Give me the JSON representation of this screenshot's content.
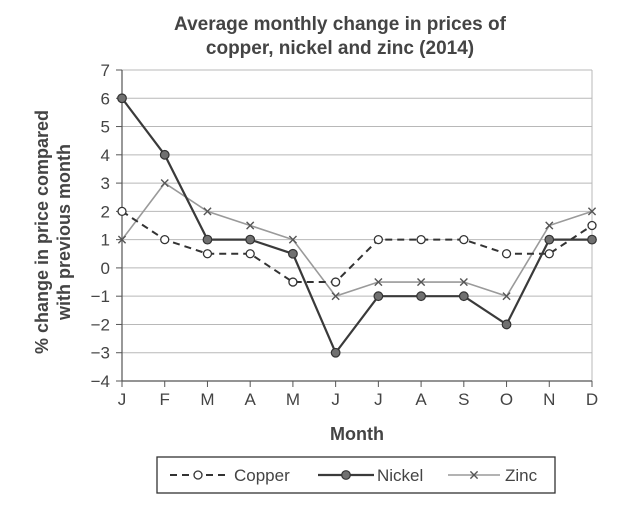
{
  "chart_data": {
    "type": "line",
    "title_lines": [
      "Average monthly change in prices of",
      "copper, nickel and zinc (2014)"
    ],
    "xlabel": "Month",
    "ylabel_lines": [
      "% change in price compared",
      "with previous month"
    ],
    "categories": [
      "J",
      "F",
      "M",
      "A",
      "M",
      "J",
      "J",
      "A",
      "S",
      "O",
      "N",
      "D"
    ],
    "ylim": [
      -4,
      7
    ],
    "yticks": [
      7,
      6,
      5,
      4,
      3,
      2,
      1,
      0,
      -1,
      -2,
      -3,
      -4
    ],
    "ytick_labels": [
      "7",
      "6",
      "5",
      "4",
      "3",
      "2",
      "1",
      "0",
      "−1",
      "−2",
      "−3",
      "−4"
    ],
    "grid": true,
    "legend_position": "bottom",
    "series": [
      {
        "name": "Copper",
        "style": "dashed",
        "marker": "open-circle",
        "color": "#333333",
        "values": [
          2,
          1,
          0.5,
          0.5,
          -0.5,
          -0.5,
          1,
          1,
          1,
          0.5,
          0.5,
          1.5
        ]
      },
      {
        "name": "Nickel",
        "style": "solid",
        "marker": "filled-circle",
        "color": "#3a3a3a",
        "values": [
          6,
          4,
          1,
          1,
          0.5,
          -3,
          -1,
          -1,
          -1,
          -2,
          1,
          1
        ]
      },
      {
        "name": "Zinc",
        "style": "solid-light",
        "marker": "cross",
        "color": "#9a9a9a",
        "values": [
          1,
          3,
          2,
          1.5,
          1,
          -1,
          -0.5,
          -0.5,
          -0.5,
          -1,
          1.5,
          2
        ]
      }
    ]
  }
}
